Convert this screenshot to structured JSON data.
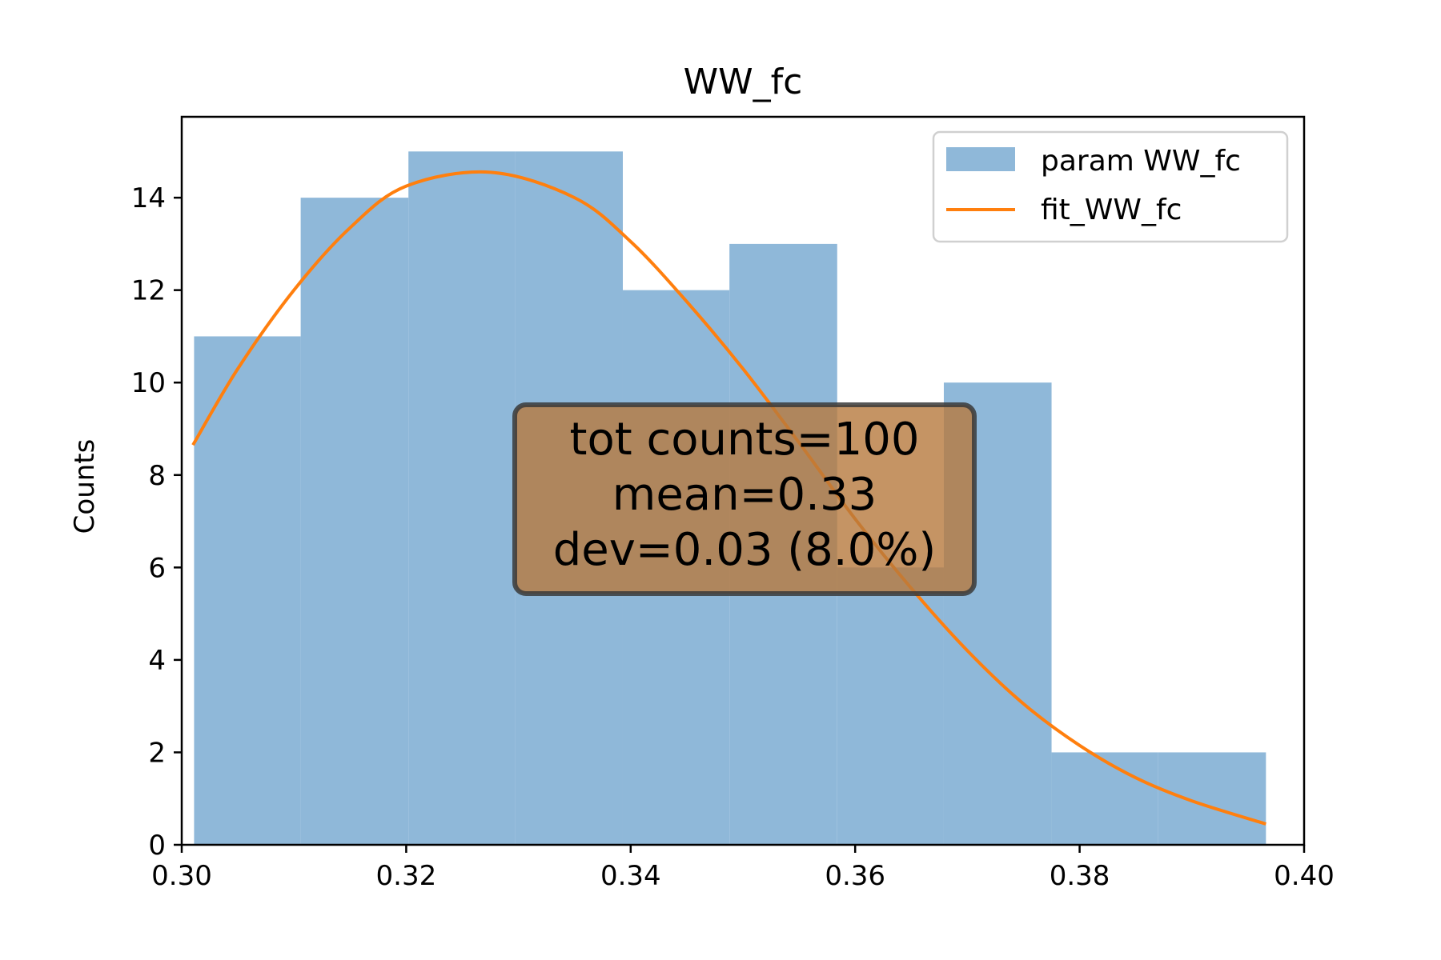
{
  "chart_data": {
    "type": "bar",
    "title": "WW_fc",
    "xlabel": "",
    "ylabel": "Counts",
    "xlim": [
      0.3,
      0.4
    ],
    "ylim": [
      0,
      15.75
    ],
    "x_ticks": [
      "0.30",
      "0.32",
      "0.34",
      "0.36",
      "0.38",
      "0.40"
    ],
    "y_ticks": [
      "0",
      "2",
      "4",
      "6",
      "8",
      "10",
      "12",
      "14"
    ],
    "grid": false,
    "legend_position": "top-right",
    "bin_edges": [
      0.3011,
      0.3106,
      0.3202,
      0.3297,
      0.3393,
      0.3488,
      0.3584,
      0.3679,
      0.3775,
      0.387,
      0.3966
    ],
    "series": [
      {
        "name": "param WW_fc",
        "kind": "histogram",
        "color": "#8fb8d9",
        "values": [
          11,
          14,
          15,
          15,
          12,
          13,
          6,
          10,
          2,
          2
        ]
      },
      {
        "name": "fit_WW_fc",
        "kind": "line",
        "color": "#ff7f0e",
        "x": [
          0.301,
          0.305,
          0.31,
          0.315,
          0.32,
          0.3275,
          0.335,
          0.34,
          0.345,
          0.35,
          0.355,
          0.36,
          0.365,
          0.37,
          0.375,
          0.38,
          0.385,
          0.39,
          0.3966
        ],
        "y": [
          8.65,
          10.3,
          12.0,
          13.35,
          14.25,
          14.55,
          14.0,
          13.05,
          11.75,
          10.3,
          8.7,
          7.05,
          5.55,
          4.2,
          3.05,
          2.15,
          1.45,
          0.95,
          0.45
        ]
      }
    ],
    "annotation": {
      "lines": [
        "tot counts=100",
        "mean=0.33",
        "dev=0.03 (8.0%)"
      ],
      "box_color": "#b7793d"
    }
  }
}
